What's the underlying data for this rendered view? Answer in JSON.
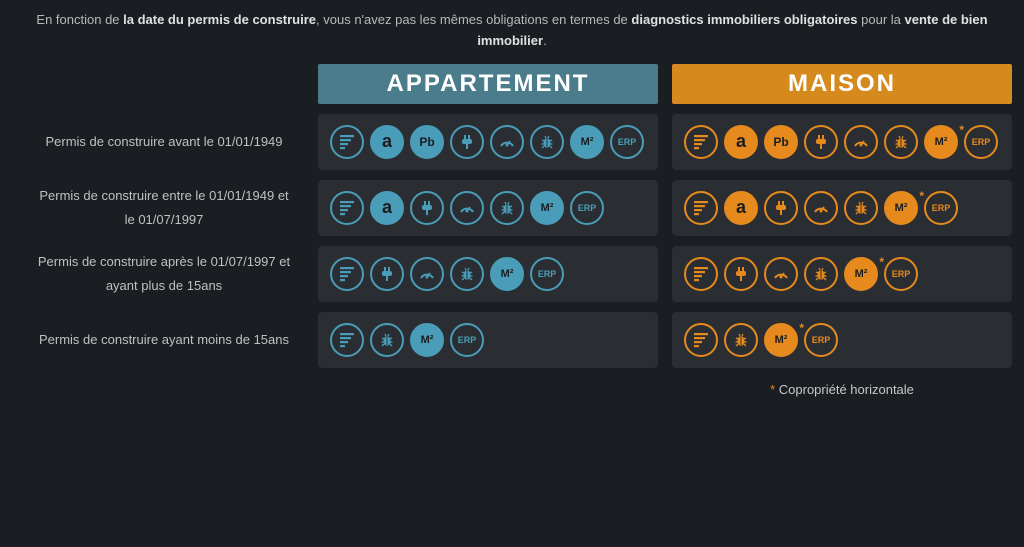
{
  "intro": {
    "pre": "En fonction de ",
    "bold1": "la date du permis de construire",
    "mid": ", vous n'avez pas les mêmes obligations en termes de ",
    "bold2": "diagnostics immobiliers obligatoires",
    "mid2": " pour la ",
    "bold3": "vente de bien immobilier",
    "end": "."
  },
  "headers": {
    "appt": "APPARTEMENT",
    "house": "MAISON"
  },
  "rows": [
    {
      "label": "Permis de construire avant le 01/01/1949"
    },
    {
      "label": "Permis de construire entre le 01/01/1949 et le 01/07/1997"
    },
    {
      "label": "Permis de construire après le 01/07/1997 et ayant plus de 15ans"
    },
    {
      "label": "Permis de construire ayant moins de 15ans"
    }
  ],
  "icons": {
    "dpe": {
      "svg": "bars"
    },
    "a": {
      "text": "a"
    },
    "pb": {
      "text": "Pb"
    },
    "elec": {
      "svg": "plug"
    },
    "gas": {
      "svg": "dial"
    },
    "bug": {
      "svg": "bug"
    },
    "m2": {
      "text": "M²"
    },
    "erp": {
      "text": "ERP"
    }
  },
  "cells": {
    "r0_appt": [
      "dpe",
      "a",
      "pb",
      "elec",
      "gas",
      "bug",
      "m2",
      "erp"
    ],
    "r0_house": [
      "dpe",
      "a",
      "pb",
      "elec",
      "gas",
      "bug",
      "m2*",
      "erp"
    ],
    "r1_appt": [
      "dpe",
      "a",
      "elec",
      "gas",
      "bug",
      "m2",
      "erp"
    ],
    "r1_house": [
      "dpe",
      "a",
      "elec",
      "gas",
      "bug",
      "m2*",
      "erp"
    ],
    "r2_appt": [
      "dpe",
      "elec",
      "gas",
      "bug",
      "m2",
      "erp"
    ],
    "r2_house": [
      "dpe",
      "elec",
      "gas",
      "bug",
      "m2*",
      "erp"
    ],
    "r3_appt": [
      "dpe",
      "bug",
      "m2",
      "erp"
    ],
    "r3_house": [
      "dpe",
      "bug",
      "m2*",
      "erp"
    ]
  },
  "solid_icons": [
    "a",
    "pb",
    "m2"
  ],
  "colors": {
    "teal": "#4a9db8",
    "orange": "#e68a1e",
    "cell_bg": "#2a2e33",
    "page_bg": "#1a1d21",
    "text": "#c8c8c8"
  },
  "footnote": {
    "ast": "*",
    "text": " Copropriété horizontale"
  }
}
